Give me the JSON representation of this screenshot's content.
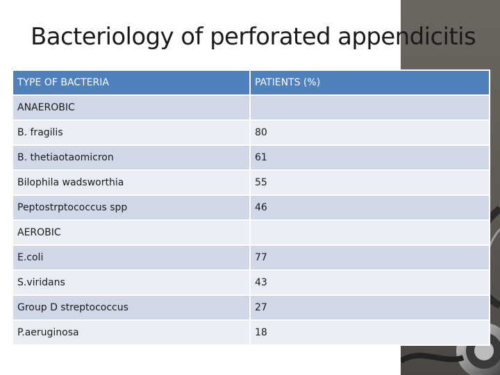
{
  "slide": {
    "title": "Bacteriology of perforated appendicitis"
  },
  "table": {
    "headers": [
      "TYPE OF BACTERIA",
      "PATIENTS (%)"
    ],
    "rows": [
      {
        "name": "ANAEROBIC",
        "value": ""
      },
      {
        "name": "B. fragilis",
        "value": "80"
      },
      {
        "name": "B. thetiaotaomicron",
        "value": "61"
      },
      {
        "name": "Bilophila wadsworthia",
        "value": "55"
      },
      {
        "name": "Peptostrptococcus spp",
        "value": "46"
      },
      {
        "name": "AEROBIC",
        "value": ""
      },
      {
        "name": "E.coli",
        "value": "77"
      },
      {
        "name": "S.viridans",
        "value": "43"
      },
      {
        "name": "Group D streptococcus",
        "value": "27"
      },
      {
        "name": "P.aeruginosa",
        "value": "18"
      }
    ]
  },
  "colors": {
    "header_bg": "#4f81bd",
    "row_light": "#e9edf4",
    "row_dark": "#d0d8e8",
    "side_panel": "#6b6660"
  }
}
